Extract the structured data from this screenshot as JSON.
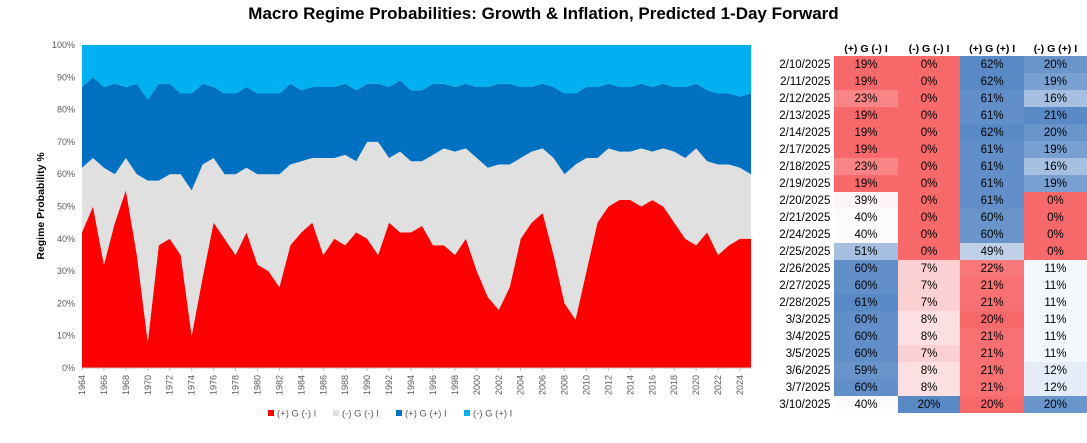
{
  "chart_data": {
    "type": "area",
    "title": "Macro Regime Probabilities: Growth & Inflation, Predicted 1-Day Forward",
    "ylabel": "Regime Probability %",
    "xlabel": "",
    "ylim": [
      0,
      100
    ],
    "y_ticks": [
      "0%",
      "10%",
      "20%",
      "30%",
      "40%",
      "50%",
      "60%",
      "70%",
      "80%",
      "90%",
      "100%"
    ],
    "x_ticks": [
      "1964",
      "1966",
      "1968",
      "1970",
      "1972",
      "1974",
      "1976",
      "1978",
      "1980",
      "1982",
      "1984",
      "1986",
      "1988",
      "1990",
      "1992",
      "1994",
      "1996",
      "1998",
      "2000",
      "2002",
      "2004",
      "2006",
      "2008",
      "2010",
      "2012",
      "2014",
      "2016",
      "2018",
      "2020",
      "2022",
      "2024"
    ],
    "stacked": true,
    "legend_position": "bottom",
    "x": [
      1964,
      1965,
      1966,
      1967,
      1968,
      1969,
      1970,
      1971,
      1972,
      1973,
      1974,
      1975,
      1976,
      1977,
      1978,
      1979,
      1980,
      1981,
      1982,
      1983,
      1984,
      1985,
      1986,
      1987,
      1988,
      1989,
      1990,
      1991,
      1992,
      1993,
      1994,
      1995,
      1996,
      1997,
      1998,
      1999,
      2000,
      2001,
      2002,
      2003,
      2004,
      2005,
      2006,
      2007,
      2008,
      2009,
      2010,
      2011,
      2012,
      2013,
      2014,
      2015,
      2016,
      2017,
      2018,
      2019,
      2020,
      2021,
      2022,
      2023,
      2024,
      2025
    ],
    "series": [
      {
        "name": "(+) G (-) I",
        "color": "#ff0000",
        "values": [
          42,
          50,
          32,
          45,
          55,
          35,
          8,
          38,
          40,
          35,
          10,
          28,
          45,
          40,
          35,
          42,
          32,
          30,
          25,
          38,
          42,
          45,
          35,
          40,
          38,
          42,
          40,
          35,
          45,
          42,
          42,
          44,
          38,
          38,
          35,
          40,
          30,
          22,
          18,
          25,
          40,
          45,
          48,
          35,
          20,
          15,
          30,
          45,
          50,
          52,
          52,
          50,
          52,
          50,
          45,
          40,
          38,
          42,
          35,
          38,
          40,
          40
        ]
      },
      {
        "name": "(-) G (-) I",
        "color": "#e0e0e0",
        "values": [
          20,
          15,
          30,
          15,
          10,
          25,
          50,
          20,
          20,
          25,
          45,
          35,
          20,
          20,
          25,
          20,
          28,
          30,
          35,
          25,
          22,
          20,
          30,
          25,
          28,
          22,
          30,
          35,
          20,
          25,
          22,
          20,
          28,
          30,
          32,
          28,
          35,
          40,
          45,
          38,
          25,
          22,
          20,
          30,
          40,
          48,
          35,
          20,
          18,
          15,
          15,
          18,
          15,
          18,
          22,
          25,
          30,
          22,
          28,
          25,
          22,
          20
        ]
      },
      {
        "name": "(+) G (+) I",
        "color": "#0070c0",
        "values": [
          25,
          25,
          25,
          28,
          22,
          28,
          25,
          30,
          28,
          25,
          30,
          25,
          22,
          25,
          25,
          25,
          25,
          25,
          25,
          25,
          22,
          22,
          22,
          22,
          22,
          22,
          18,
          18,
          22,
          22,
          22,
          22,
          22,
          20,
          20,
          20,
          22,
          25,
          25,
          25,
          22,
          20,
          20,
          22,
          25,
          22,
          22,
          22,
          20,
          20,
          20,
          20,
          20,
          20,
          20,
          22,
          20,
          22,
          22,
          22,
          22,
          25
        ]
      },
      {
        "name": "(-) G (+) I",
        "color": "#00b0f0",
        "values": [
          13,
          10,
          13,
          12,
          13,
          12,
          17,
          12,
          12,
          15,
          15,
          12,
          13,
          15,
          15,
          13,
          15,
          15,
          15,
          12,
          14,
          13,
          13,
          13,
          12,
          14,
          12,
          12,
          13,
          11,
          14,
          14,
          12,
          12,
          13,
          12,
          13,
          13,
          12,
          12,
          13,
          13,
          12,
          13,
          15,
          15,
          13,
          13,
          12,
          13,
          13,
          12,
          13,
          12,
          13,
          13,
          12,
          14,
          15,
          15,
          16,
          15
        ]
      }
    ]
  },
  "table": {
    "headers": [
      "(+) G (-) I",
      "(-) G (-) I",
      "(+) G (+) I",
      "(-) G (+) I"
    ],
    "rows": [
      {
        "date": "2/10/2025",
        "vals": [
          19,
          0,
          62,
          20
        ]
      },
      {
        "date": "2/11/2025",
        "vals": [
          19,
          0,
          62,
          19
        ]
      },
      {
        "date": "2/12/2025",
        "vals": [
          23,
          0,
          61,
          16
        ]
      },
      {
        "date": "2/13/2025",
        "vals": [
          19,
          0,
          61,
          21
        ]
      },
      {
        "date": "2/14/2025",
        "vals": [
          19,
          0,
          62,
          20
        ]
      },
      {
        "date": "2/17/2025",
        "vals": [
          19,
          0,
          61,
          19
        ]
      },
      {
        "date": "2/18/2025",
        "vals": [
          23,
          0,
          61,
          16
        ]
      },
      {
        "date": "2/19/2025",
        "vals": [
          19,
          0,
          61,
          19
        ]
      },
      {
        "date": "2/20/2025",
        "vals": [
          39,
          0,
          61,
          0
        ]
      },
      {
        "date": "2/21/2025",
        "vals": [
          40,
          0,
          60,
          0
        ]
      },
      {
        "date": "2/24/2025",
        "vals": [
          40,
          0,
          60,
          0
        ]
      },
      {
        "date": "2/25/2025",
        "vals": [
          51,
          0,
          49,
          0
        ]
      },
      {
        "date": "2/26/2025",
        "vals": [
          60,
          7,
          22,
          11
        ]
      },
      {
        "date": "2/27/2025",
        "vals": [
          60,
          7,
          21,
          11
        ]
      },
      {
        "date": "2/28/2025",
        "vals": [
          61,
          7,
          21,
          11
        ]
      },
      {
        "date": "3/3/2025",
        "vals": [
          60,
          8,
          20,
          11
        ]
      },
      {
        "date": "3/4/2025",
        "vals": [
          60,
          8,
          21,
          11
        ]
      },
      {
        "date": "3/5/2025",
        "vals": [
          60,
          7,
          21,
          11
        ]
      },
      {
        "date": "3/6/2025",
        "vals": [
          59,
          8,
          21,
          12
        ]
      },
      {
        "date": "3/7/2025",
        "vals": [
          60,
          8,
          21,
          12
        ]
      },
      {
        "date": "3/10/2025",
        "vals": [
          40,
          20,
          20,
          20
        ]
      }
    ]
  }
}
